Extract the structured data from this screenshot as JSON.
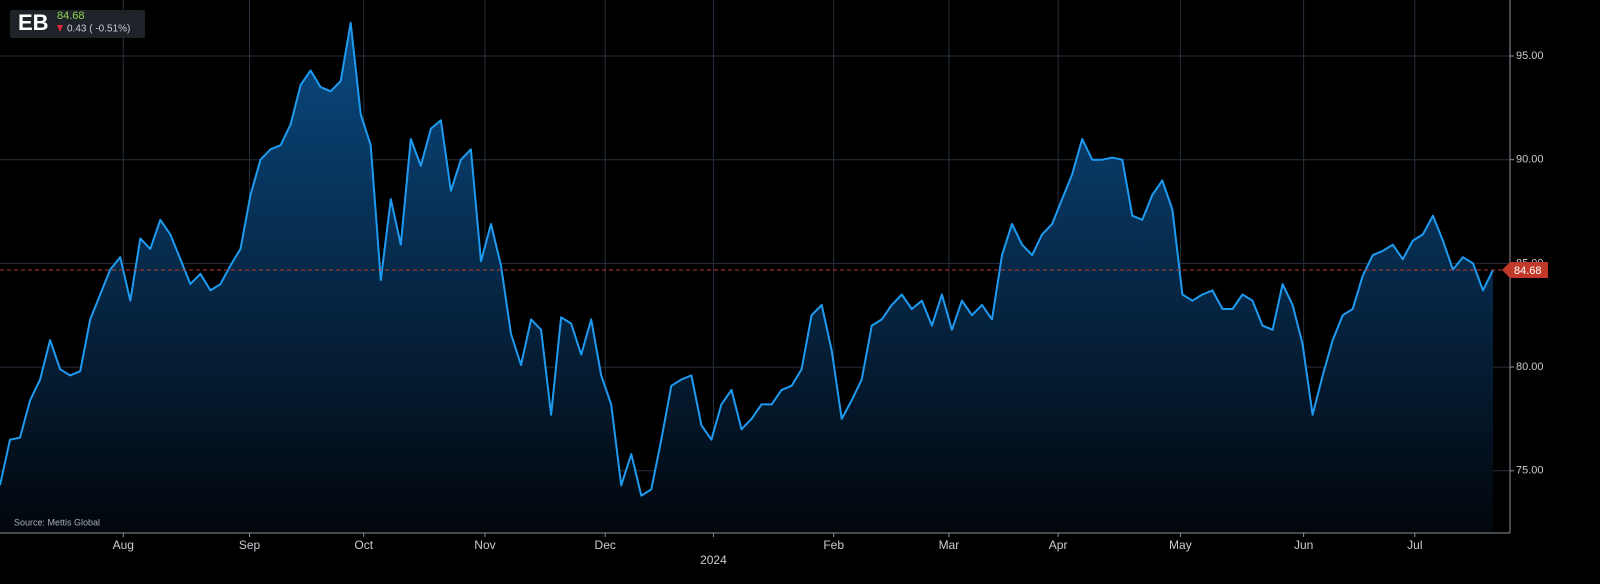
{
  "chart_data": {
    "type": "area",
    "ticker": "EB",
    "last_price": 84.68,
    "change_label": "0.43 ( -0.51%)",
    "source": "Source: Mettis Global",
    "color": "#1e9bf0",
    "grid": true,
    "values": [
      74.3,
      76.5,
      76.6,
      78.4,
      79.4,
      81.3,
      79.9,
      79.6,
      79.8,
      82.3,
      83.5,
      84.7,
      85.3,
      83.2,
      86.2,
      85.7,
      87.1,
      86.4,
      85.2,
      84.0,
      84.5,
      83.7,
      84.0,
      84.9,
      85.7,
      88.3,
      90.0,
      90.5,
      90.7,
      91.7,
      93.6,
      94.3,
      93.5,
      93.3,
      93.8,
      96.6,
      92.2,
      90.7,
      84.2,
      88.1,
      85.9,
      91.0,
      89.7,
      91.5,
      91.9,
      88.5,
      90.0,
      90.5,
      85.1,
      86.9,
      84.9,
      81.6,
      80.1,
      82.3,
      81.8,
      77.7,
      82.4,
      82.1,
      80.6,
      82.3,
      79.6,
      78.2,
      74.3,
      75.8,
      73.8,
      74.1,
      76.5,
      79.1,
      79.4,
      79.6,
      77.2,
      76.5,
      78.2,
      78.9,
      77.0,
      77.5,
      78.2,
      78.2,
      78.9,
      79.1,
      79.9,
      82.5,
      83.0,
      80.8,
      77.5,
      78.4,
      79.4,
      82.0,
      82.3,
      83.0,
      83.5,
      82.8,
      83.2,
      82.0,
      83.5,
      81.8,
      83.2,
      82.5,
      83.0,
      82.3,
      85.4,
      86.9,
      85.9,
      85.4,
      86.4,
      86.9,
      88.1,
      89.3,
      91.0,
      90.0,
      90.0,
      90.1,
      90.0,
      87.3,
      87.1,
      88.3,
      89.0,
      87.6,
      83.5,
      83.2,
      83.5,
      83.7,
      82.8,
      82.8,
      83.5,
      83.2,
      82.0,
      81.8,
      84.0,
      83.0,
      81.1,
      77.7,
      79.6,
      81.3,
      82.5,
      82.8,
      84.4,
      85.4,
      85.6,
      85.9,
      85.2,
      86.1,
      86.4,
      87.3,
      86.1,
      84.7,
      85.3,
      85.0,
      83.7,
      84.68
    ],
    "xlim": [
      0,
      149
    ],
    "xticks": [
      {
        "value": 12.3,
        "label": "Aug"
      },
      {
        "value": 24.9,
        "label": "Sep"
      },
      {
        "value": 36.3,
        "label": "Oct"
      },
      {
        "value": 48.4,
        "label": "Nov"
      },
      {
        "value": 60.4,
        "label": "Dec"
      },
      {
        "value": 83.2,
        "label": "Feb"
      },
      {
        "value": 94.7,
        "label": "Mar"
      },
      {
        "value": 105.6,
        "label": "Apr"
      },
      {
        "value": 117.8,
        "label": "May"
      },
      {
        "value": 130.1,
        "label": "Jun"
      },
      {
        "value": 141.2,
        "label": "Jul"
      }
    ],
    "x_year_tick": {
      "value": 71.2,
      "label": "2024"
    },
    "ylim": [
      72,
      97.7
    ],
    "yticks": [
      {
        "value": 75,
        "label": "75.00"
      },
      {
        "value": 80,
        "label": "80.00"
      },
      {
        "value": 85,
        "label": "85.00"
      },
      {
        "value": 90,
        "label": "90.00"
      },
      {
        "value": 95,
        "label": "95.00"
      }
    ]
  }
}
